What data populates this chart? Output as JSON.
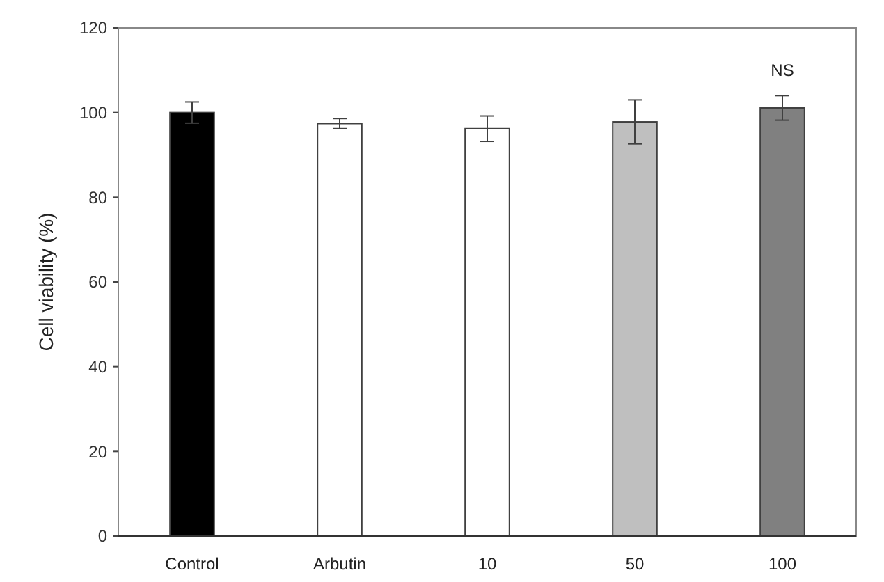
{
  "chart_data": {
    "type": "bar",
    "ylabel": "Cell viability (%)",
    "categories": [
      "Control",
      "Arbutin",
      "10",
      "50",
      "100"
    ],
    "values": [
      100,
      97.4,
      96.2,
      97.8,
      101.1
    ],
    "errors": [
      2.5,
      1.2,
      3,
      5.2,
      2.9
    ],
    "colors": [
      "#000000",
      "#ffffff",
      "#ffffff",
      "#bfbfbf",
      "#808080"
    ],
    "ylim": [
      0,
      120
    ],
    "yticks": [
      0,
      20,
      40,
      60,
      80,
      100,
      120
    ],
    "grid": false,
    "annotations": [
      "NS"
    ]
  }
}
